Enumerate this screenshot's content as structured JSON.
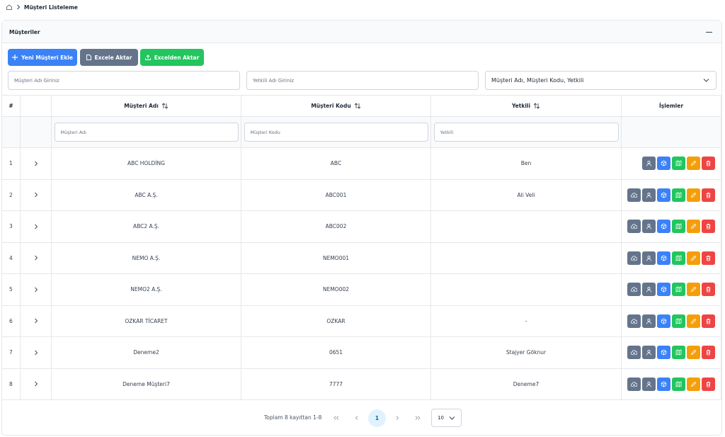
{
  "breadcrumb": {
    "title": "Müşteri Listeleme"
  },
  "card": {
    "title": "Müşteriler"
  },
  "buttons": [
    "Yeni Müşteri Ekle",
    "Excele Aktar",
    "Excelden Aktar"
  ],
  "filters": {
    "customer_name": "Müşteri Adı Giriniz",
    "contact_name": "Yetkili Adı Giriniz",
    "search_fields": "Müşteri Adı, Müşteri Kodu, Yetkili"
  },
  "table": {
    "headers": [
      "#",
      "Müşteri Adı",
      "Müşteri Kodu",
      "Yetkili",
      "İşlemler"
    ],
    "column_filters": [
      "Müşteri Adı",
      "Müşteri Kodu",
      "Yetkili"
    ],
    "rows": [
      {
        "no": 1,
        "name": "ABC HOLDİNG",
        "code": "ABC",
        "contact": "Ben",
        "upload": false
      },
      {
        "no": 2,
        "name": "ABC A.Ş.",
        "code": "ABC001",
        "contact": "Ali Veli",
        "upload": true
      },
      {
        "no": 3,
        "name": "ABC2 A.Ş.",
        "code": "ABC002",
        "contact": null,
        "upload": true
      },
      {
        "no": 4,
        "name": "NEMO A.Ş.",
        "code": "NEMO001",
        "contact": null,
        "upload": true
      },
      {
        "no": 5,
        "name": "NEMO2 A.Ş.",
        "code": "NEMO002",
        "contact": null,
        "upload": true
      },
      {
        "no": 6,
        "name": "OZKAR TİCARET",
        "code": "OZKAR",
        "contact": "-",
        "upload": true
      },
      {
        "no": 7,
        "name": "Deneme2",
        "code": "0651",
        "contact": "Stajyer Göknur",
        "upload": true
      },
      {
        "no": 8,
        "name": "Deneme Müşteri7",
        "code": "7777",
        "contact": "Deneme7",
        "upload": true
      }
    ]
  },
  "pagination": {
    "summary": "Toplam 8 kayıttan 1-8",
    "page": 1,
    "page_size": 10
  }
}
